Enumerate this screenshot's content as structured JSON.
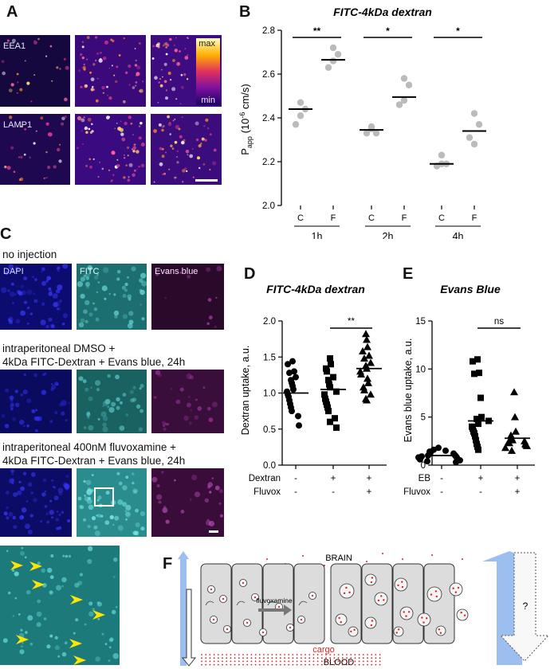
{
  "panel_labels": {
    "a": "A",
    "b": "B",
    "c": "C",
    "d": "D",
    "e": "E",
    "f": "F"
  },
  "panel_a": {
    "row_labels": [
      "EEA1",
      "LAMP1"
    ],
    "colorbar": {
      "max": "max",
      "min": "min"
    }
  },
  "panel_c": {
    "conditions": [
      "no injection",
      "intraperitoneal DMSO +",
      "4kDa FITC-Dextran + Evans blue, 24h",
      "intraperitoneal 400nM fluvoxamine +",
      "4kDa FITC-Dextran + Evans blue, 24h"
    ],
    "channels": [
      "DAPI",
      "FITC",
      "Evans blue"
    ]
  },
  "panel_f": {
    "brain": "BRAIN",
    "blood": "BLOOD",
    "cargo": "cargo",
    "drug": "fluvoxamine",
    "question": "?"
  },
  "colors": {
    "dots_b": "#bbbbbb",
    "cargo": "#dd2222",
    "arrow_blue": "#9dbff0",
    "dapi": "#1a1aa8",
    "fitc": "#2a9a9a",
    "evans": "#6a1a6a"
  },
  "chart_data": [
    {
      "id": "B",
      "type": "scatter",
      "title": "FITC-4kDa dextran",
      "ylabel_main": "P",
      "ylabel_sub": "app",
      "ylabel_pre": "(10",
      "ylabel_exp": "-6",
      "ylabel_post": " cm/s)",
      "ylim": [
        2.0,
        2.8
      ],
      "yticks": [
        "2.0",
        "2.2",
        "2.4",
        "2.6",
        "2.8"
      ],
      "categories": [
        "C",
        "F",
        "C",
        "F",
        "C",
        "F"
      ],
      "groups": [
        "1h",
        "2h",
        "4h"
      ],
      "series": [
        {
          "points": [
            [
              2.47,
              2.44,
              2.37,
              2.41
            ],
            [
              2.72,
              2.69,
              2.63,
              2.66
            ],
            [
              2.36,
              2.33,
              2.33,
              2.35
            ],
            [
              2.58,
              2.55,
              2.46,
              2.48
            ],
            [
              2.23,
              2.19,
              2.18,
              2.19
            ],
            [
              2.42,
              2.37,
              2.31,
              2.28
            ]
          ]
        }
      ],
      "means": [
        2.44,
        2.665,
        2.345,
        2.495,
        2.19,
        2.34
      ],
      "significance": [
        {
          "from": 0,
          "to": 1,
          "label": "**"
        },
        {
          "from": 2,
          "to": 3,
          "label": "*"
        },
        {
          "from": 4,
          "to": 5,
          "label": "*"
        }
      ]
    },
    {
      "id": "D",
      "type": "scatter",
      "title": "FITC-4kDa dextran",
      "ylabel": "Dextran uptake, a.u.",
      "ylim": [
        0.0,
        2.0
      ],
      "yticks": [
        "0.0",
        "0.5",
        "1.0",
        "1.5",
        "2.0"
      ],
      "row_labels": [
        "Dextran",
        "Fluvox"
      ],
      "row_values": [
        [
          "-",
          "+",
          "+"
        ],
        [
          "-",
          "-",
          "+"
        ]
      ],
      "series": [
        {
          "marker": "circle",
          "values": [
            1.44,
            1.4,
            1.3,
            1.28,
            1.22,
            1.18,
            1.14,
            1.1,
            1.05,
            1.02,
            0.98,
            0.95,
            0.9,
            0.85,
            0.8,
            0.75,
            0.68,
            0.55
          ]
        },
        {
          "marker": "square",
          "values": [
            1.48,
            1.4,
            1.34,
            1.3,
            1.22,
            1.18,
            1.12,
            1.08,
            1.02,
            0.98,
            0.92,
            0.88,
            0.84,
            0.8,
            0.75,
            0.65,
            0.6,
            0.52
          ]
        },
        {
          "marker": "triangle",
          "values": [
            1.82,
            1.74,
            1.64,
            1.58,
            1.52,
            1.48,
            1.42,
            1.38,
            1.34,
            1.3,
            1.26,
            1.2,
            1.14,
            1.08,
            1.04,
            0.98,
            0.92,
            0.9
          ]
        }
      ],
      "means": [
        1.0,
        1.05,
        1.34
      ],
      "significance": [
        {
          "from": 1,
          "to": 2,
          "label": "**"
        }
      ]
    },
    {
      "id": "E",
      "type": "scatter",
      "title": "Evans Blue",
      "ylabel": "Evans blue uptake, a.u.",
      "ylim": [
        0,
        15
      ],
      "yticks": [
        "0",
        "5",
        "10",
        "15"
      ],
      "row_labels": [
        "EB",
        "Fluvox"
      ],
      "row_values": [
        [
          "-",
          "+",
          "+"
        ],
        [
          "-",
          "-",
          "+"
        ]
      ],
      "series": [
        {
          "marker": "circle",
          "values": [
            1.8,
            1.6,
            1.5,
            1.4,
            1.3,
            1.2,
            1.1,
            1.0,
            1.0,
            0.9,
            0.9,
            0.8,
            0.8,
            0.7,
            0.6,
            0.5,
            0.4,
            0.3
          ]
        },
        {
          "marker": "square",
          "values": [
            11.0,
            10.8,
            9.6,
            9.5,
            7.0,
            5.0,
            4.8,
            4.6,
            4.3,
            4.0,
            3.8,
            3.5,
            3.3,
            3.0,
            2.6,
            2.2,
            1.9,
            1.6
          ]
        },
        {
          "marker": "triangle",
          "values": [
            7.6,
            5.0,
            3.5,
            3.1,
            2.8,
            2.6,
            2.5,
            2.4,
            2.3,
            2.2,
            2.1,
            2.0,
            1.8,
            1.5
          ]
        }
      ],
      "means": [
        1.0,
        4.6,
        2.8
      ],
      "significance": [
        {
          "from": 1,
          "to": 2,
          "label": "ns"
        }
      ]
    }
  ]
}
